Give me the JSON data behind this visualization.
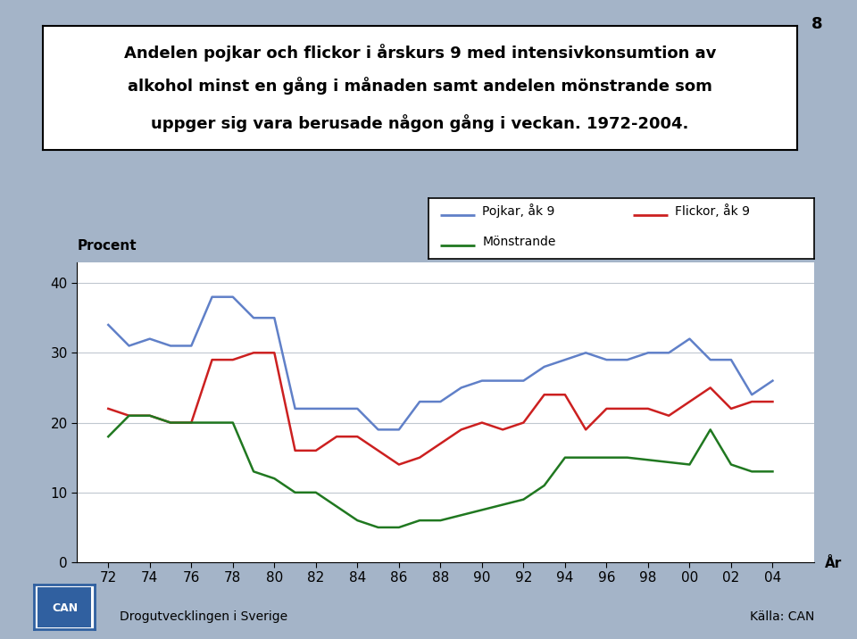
{
  "pojkar_x": [
    72,
    73,
    74,
    75,
    76,
    77,
    78,
    79,
    80,
    81,
    82,
    83,
    84,
    85,
    86,
    87,
    88,
    89,
    90,
    91,
    92,
    93,
    94,
    95,
    96,
    97,
    98,
    99,
    100,
    101,
    102,
    103,
    104
  ],
  "pojkar_y": [
    34,
    31,
    32,
    31,
    31,
    38,
    38,
    35,
    35,
    22,
    22,
    22,
    22,
    19,
    19,
    23,
    23,
    25,
    26,
    26,
    26,
    28,
    29,
    30,
    29,
    29,
    30,
    30,
    32,
    29,
    29,
    24,
    26
  ],
  "flickor_x": [
    72,
    73,
    74,
    75,
    76,
    77,
    78,
    79,
    80,
    81,
    82,
    83,
    84,
    86,
    87,
    88,
    89,
    90,
    91,
    92,
    93,
    94,
    95,
    96,
    97,
    98,
    99,
    100,
    101,
    102,
    103,
    104
  ],
  "flickor_y": [
    22,
    21,
    21,
    20,
    20,
    29,
    29,
    30,
    30,
    16,
    16,
    18,
    18,
    14,
    15,
    17,
    19,
    20,
    19,
    20,
    24,
    24,
    19,
    22,
    22,
    22,
    21,
    23,
    25,
    22,
    23,
    23
  ],
  "monstrande_x": [
    72,
    73,
    74,
    75,
    76,
    77,
    78,
    79,
    80,
    81,
    82,
    83,
    84,
    85,
    86,
    87,
    88,
    92,
    93,
    94,
    95,
    96,
    97,
    100,
    101,
    102,
    103,
    104
  ],
  "monstrande_y": [
    18,
    21,
    21,
    20,
    20,
    20,
    20,
    13,
    12,
    10,
    10,
    8,
    6,
    5,
    5,
    6,
    6,
    9,
    11,
    15,
    15,
    15,
    15,
    14,
    19,
    14,
    13,
    13
  ],
  "background_color": "#a4b4c8",
  "plot_bg_color": "#ffffff",
  "title_line1": "Andelen pojkar och flickor i årskurs 9 med intensivkonsumtion av",
  "title_line2": "alkohol minst en gång i månaden samt andelen mönstrande som",
  "title_line3": "uppger sig vara berusade någon gång i veckan. 1972-2004.",
  "ylabel": "Procent",
  "xlabel": "År",
  "yticks": [
    0,
    10,
    20,
    30,
    40
  ],
  "xtick_labels": [
    "72",
    "74",
    "76",
    "78",
    "80",
    "82",
    "84",
    "86",
    "88",
    "90",
    "92",
    "94",
    "96",
    "98",
    "00",
    "02",
    "04"
  ],
  "xtick_positions": [
    72,
    74,
    76,
    78,
    80,
    82,
    84,
    86,
    88,
    90,
    92,
    94,
    96,
    98,
    100,
    102,
    104
  ],
  "xlim": [
    70.5,
    106
  ],
  "ylim": [
    0,
    43
  ],
  "pojkar_color": "#6080c8",
  "flickor_color": "#cc2020",
  "monstrande_color": "#207820",
  "footer_left": "Drogutvecklingen i Sverige",
  "footer_right": "Källa: CAN",
  "page_number": "8",
  "legend_pojkar": "Pojkar, åk 9",
  "legend_flickor": "Flickor, åk 9",
  "legend_monstrande": "Mönstrande"
}
